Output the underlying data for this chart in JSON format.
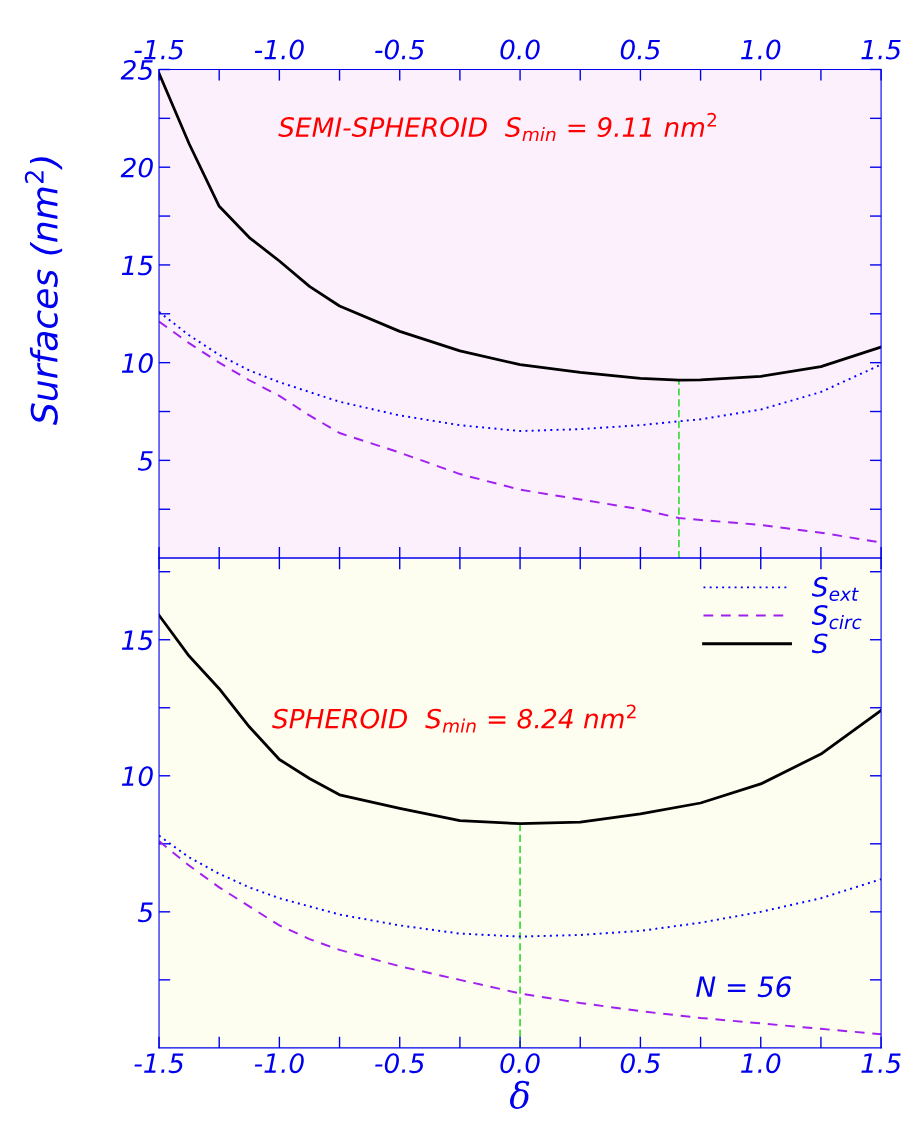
{
  "chart_data": [
    {
      "type": "line",
      "ylabel": "Surfaces (nm$^{2}$)",
      "annotations": [
        "SEMI-SPHEROID  S$_{min}$ = 9.11 nm$^{2}$"
      ],
      "x": [
        -1.5,
        -1.375,
        -1.25,
        -1.125,
        -1.0,
        -0.875,
        -0.75,
        -0.5,
        -0.25,
        0.0,
        0.25,
        0.5,
        0.66,
        0.75,
        1.0,
        1.25,
        1.5
      ],
      "series": [
        {
          "color": "#0000ff",
          "line_style": "dotted",
          "values": [
            12.6,
            11.4,
            10.4,
            9.6,
            9.0,
            8.5,
            8.0,
            7.3,
            6.8,
            6.5,
            6.6,
            6.8,
            7.0,
            7.1,
            7.6,
            8.5,
            9.9
          ]
        },
        {
          "color": "#a020f0",
          "line_style": "dashed",
          "values": [
            12.1,
            11.0,
            10.0,
            9.1,
            8.3,
            7.3,
            6.4,
            5.4,
            4.3,
            3.5,
            3.0,
            2.5,
            2.05,
            1.95,
            1.7,
            1.3,
            0.8
          ]
        },
        {
          "color": "#000000",
          "line_style": "solid",
          "values": [
            24.8,
            21.2,
            18.0,
            16.4,
            15.2,
            13.9,
            12.9,
            11.6,
            10.6,
            9.9,
            9.5,
            9.2,
            9.11,
            9.12,
            9.3,
            9.8,
            10.8
          ]
        }
      ],
      "ref_lines": [
        {
          "axis": "x",
          "value": 0.66,
          "color": "#44dd44",
          "line_style": "dashed"
        }
      ],
      "xlim": [
        -1.5,
        1.5
      ],
      "xticks": [
        -1.5,
        {
          "value": -1.25,
          "label": null
        },
        {
          "value": -1,
          "label": "-1.0"
        },
        {
          "value": -0.75,
          "label": null
        },
        -0.5,
        {
          "value": -0.25,
          "label": null
        },
        {
          "value": 0,
          "label": "0.0"
        },
        {
          "value": 0.25,
          "label": null
        },
        0.5,
        {
          "value": 0.75,
          "label": null
        },
        {
          "value": 1,
          "label": "1.0"
        },
        {
          "value": 1.25,
          "label": null
        },
        1.5
      ],
      "ylim": [
        0,
        25
      ],
      "yticks": [
        {
          "value": 2.5,
          "label": null
        },
        5,
        {
          "value": 7.5,
          "label": null
        },
        10,
        {
          "value": 12.5,
          "label": null
        },
        15,
        {
          "value": 17.5,
          "label": null
        },
        20,
        {
          "value": 22.5,
          "label": null
        },
        25
      ],
      "grid": false
    },
    {
      "type": "line",
      "xlabel": "δ",
      "annotations": [
        "SPHEROID  S$_{min}$ = 8.24 nm$^{2}$",
        "N = 56"
      ],
      "x": [
        -1.5,
        -1.375,
        -1.25,
        -1.125,
        -1.0,
        -0.875,
        -0.75,
        -0.5,
        -0.25,
        0.0,
        0.25,
        0.5,
        0.75,
        1.0,
        1.25,
        1.5
      ],
      "series": [
        {
          "name": "S$_{ext}$",
          "color": "#0000ff",
          "line_style": "dotted",
          "values": [
            7.8,
            7.0,
            6.4,
            5.9,
            5.5,
            5.2,
            4.9,
            4.5,
            4.2,
            4.09,
            4.15,
            4.3,
            4.6,
            5.0,
            5.5,
            6.2
          ]
        },
        {
          "name": "S$_{circ}$",
          "color": "#a020f0",
          "line_style": "dashed",
          "values": [
            7.6,
            6.7,
            5.9,
            5.2,
            4.5,
            4.0,
            3.6,
            3.0,
            2.5,
            2.0,
            1.65,
            1.35,
            1.1,
            0.9,
            0.7,
            0.5
          ]
        },
        {
          "name": "S",
          "color": "#000000",
          "line_style": "solid",
          "values": [
            15.9,
            14.4,
            13.2,
            11.8,
            10.6,
            9.9,
            9.3,
            8.8,
            8.35,
            8.24,
            8.3,
            8.6,
            9.0,
            9.7,
            10.8,
            12.4
          ]
        }
      ],
      "ref_lines": [
        {
          "axis": "x",
          "value": 0,
          "color": "#44dd44",
          "line_style": "dashed"
        }
      ],
      "xlim": [
        -1.5,
        1.5
      ],
      "xticks": [
        -1.5,
        {
          "value": -1.25,
          "label": null
        },
        {
          "value": -1,
          "label": "-1.0"
        },
        {
          "value": -0.75,
          "label": null
        },
        -0.5,
        {
          "value": -0.25,
          "label": null
        },
        {
          "value": 0,
          "label": "0.0"
        },
        {
          "value": 0.25,
          "label": null
        },
        0.5,
        {
          "value": 0.75,
          "label": null
        },
        {
          "value": 1,
          "label": "1.0"
        },
        {
          "value": 1.25,
          "label": null
        },
        1.5
      ],
      "ylim": [
        0,
        18
      ],
      "yticks": [
        {
          "value": 2.5,
          "label": null
        },
        5,
        {
          "value": 7.5,
          "label": null
        },
        10,
        {
          "value": 12.5,
          "label": null
        },
        15,
        {
          "value": 17.5,
          "label": null
        }
      ],
      "grid": false,
      "legend": "top right"
    }
  ]
}
